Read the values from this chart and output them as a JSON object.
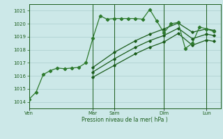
{
  "bg_color": "#cce8e8",
  "grid_color": "#aacece",
  "line_color_jagged": "#2d7a2d",
  "line_color_smooth": "#1a5c1a",
  "xlabel": "Pression niveau de la mer( hPa )",
  "ylim": [
    1013.5,
    1021.5
  ],
  "yticks": [
    1014,
    1015,
    1016,
    1017,
    1018,
    1019,
    1020,
    1021
  ],
  "day_labels": [
    "Ven",
    "Mar",
    "Sam",
    "Dim",
    "Lun"
  ],
  "day_positions": [
    0,
    9,
    12,
    19,
    25
  ],
  "xlim": [
    0,
    27
  ],
  "series1_x": [
    0,
    1,
    2,
    3,
    4,
    5,
    6,
    7,
    8,
    9,
    10,
    11,
    12,
    13,
    14,
    15,
    16,
    17,
    18,
    19,
    20,
    21,
    22,
    23,
    24,
    25,
    26
  ],
  "series1_y": [
    1014.2,
    1014.75,
    1016.1,
    1016.4,
    1016.6,
    1016.55,
    1016.6,
    1016.65,
    1017.0,
    1018.9,
    1020.6,
    1020.35,
    1020.4,
    1020.4,
    1020.4,
    1020.4,
    1020.35,
    1021.1,
    1020.2,
    1019.3,
    1020.0,
    1020.1,
    1018.1,
    1018.5,
    1019.75,
    1019.6,
    1019.4
  ],
  "series2_x": [
    9,
    12,
    15,
    17,
    19,
    21,
    23,
    25,
    26
  ],
  "series2_y": [
    1016.65,
    1017.8,
    1018.7,
    1019.2,
    1019.6,
    1020.05,
    1019.35,
    1019.6,
    1019.5
  ],
  "series3_x": [
    9,
    12,
    15,
    17,
    19,
    21,
    23,
    25,
    26
  ],
  "series3_y": [
    1016.3,
    1017.3,
    1018.2,
    1018.7,
    1019.1,
    1019.65,
    1018.85,
    1019.2,
    1019.1
  ],
  "series4_x": [
    9,
    12,
    15,
    17,
    19,
    21,
    23,
    25,
    26
  ],
  "series4_y": [
    1015.9,
    1016.8,
    1017.7,
    1018.2,
    1018.6,
    1019.25,
    1018.35,
    1018.75,
    1018.65
  ]
}
